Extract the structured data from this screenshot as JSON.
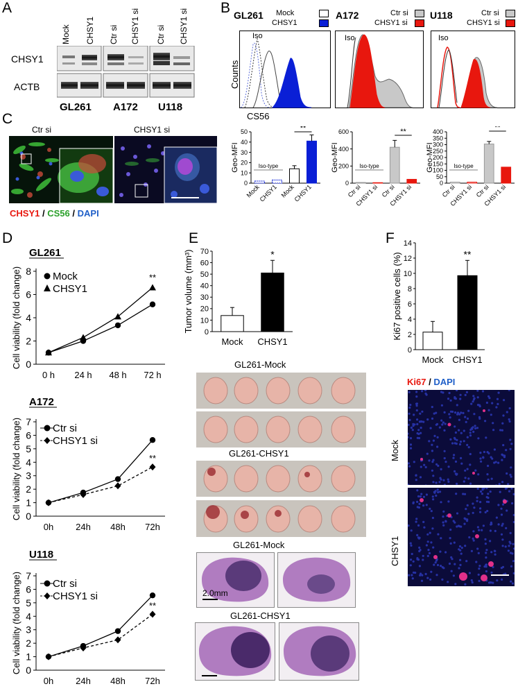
{
  "panels": {
    "A": "A",
    "B": "B",
    "C": "C",
    "D": "D",
    "E": "E",
    "F": "F"
  },
  "panelA": {
    "lanes": [
      "Mock",
      "CHSY1",
      "Ctr si",
      "CHSY1 si",
      "Ctr si",
      "CHSY1 si"
    ],
    "rows": [
      "CHSY1",
      "ACTB"
    ],
    "cell_lines": [
      "GL261",
      "A172",
      "U118"
    ]
  },
  "panelB": {
    "hist": [
      {
        "cell": "GL261",
        "legend": [
          "Mock",
          "CHSY1"
        ],
        "iso": "Iso",
        "ylabel": "Counts",
        "xlabel": "CS56"
      },
      {
        "cell": "A172",
        "legend": [
          "Ctr si",
          "CHSY1 si"
        ],
        "iso": "Iso"
      },
      {
        "cell": "U118",
        "legend": [
          "Ctr si",
          "CHSY1 si"
        ],
        "iso": "Iso"
      }
    ],
    "colors": {
      "blue": "#0a1fd6",
      "red": "#e8170e",
      "gray": "#c8c8c8"
    }
  },
  "panelC": {
    "title_left": "Ctr si",
    "title_right": "CHSY1 si",
    "stain": [
      "CHSY1",
      "/",
      "CS56",
      "/",
      "DAPI"
    ]
  },
  "panelE": {
    "label_mock": "GL261-Mock",
    "label_chsy1": "GL261-CHSY1",
    "label_mock2": "GL261-Mock",
    "label_chsy12": "GL261-CHSY1",
    "scale": "2.0mm"
  },
  "panelF": {
    "stain": [
      "Ki67",
      "/",
      "DAPI"
    ],
    "row1": "Mock",
    "row2": "CHSY1"
  },
  "chart_data": [
    {
      "id": "B-GL261-mfi",
      "type": "bar",
      "ylabel": "Geo-MFI",
      "ylim": [
        0,
        50
      ],
      "yticks": [
        0,
        10,
        20,
        30,
        40,
        50
      ],
      "categories": [
        "Mock",
        "CHSY1",
        "Mock",
        "CHSY1"
      ],
      "values": [
        2,
        3,
        14,
        41
      ],
      "errors": [
        0,
        0,
        3,
        6
      ],
      "group_note": "Iso-type",
      "sig": "**"
    },
    {
      "id": "B-A172-mfi",
      "type": "bar",
      "ylabel": "Geo-MFI",
      "ylim": [
        0,
        600
      ],
      "yticks": [
        0,
        200,
        400,
        600
      ],
      "categories": [
        "Ctr si",
        "CHSY1 si",
        "Ctr si",
        "CHSY1 si"
      ],
      "values": [
        8,
        6,
        420,
        45
      ],
      "errors": [
        0,
        0,
        80,
        0
      ],
      "group_note": "Iso-type",
      "sig": "**"
    },
    {
      "id": "B-U118-mfi",
      "type": "bar",
      "ylabel": "Geo-MFI",
      "ylim": [
        0,
        400
      ],
      "yticks": [
        0,
        50,
        100,
        150,
        200,
        250,
        300,
        350,
        400
      ],
      "categories": [
        "Ctr si",
        "CHSY1 si",
        "Ctr si",
        "CHSY1 si"
      ],
      "values": [
        8,
        8,
        305,
        125
      ],
      "errors": [
        0,
        0,
        20,
        0
      ],
      "group_note": "Iso-type",
      "sig": "**"
    },
    {
      "id": "D-GL261",
      "type": "line",
      "title": "GL261",
      "ylabel": "Cell viability (fold change)",
      "ylim": [
        0,
        8
      ],
      "yticks": [
        0,
        2,
        4,
        6,
        8
      ],
      "x": [
        "0 h",
        "24 h",
        "48 h",
        "72 h"
      ],
      "series": [
        {
          "name": "Mock",
          "values": [
            1.0,
            2.0,
            3.35,
            5.15
          ]
        },
        {
          "name": "CHSY1",
          "values": [
            1.0,
            2.3,
            4.1,
            6.6
          ]
        }
      ],
      "sig": "**"
    },
    {
      "id": "D-A172",
      "type": "line",
      "title": "A172",
      "ylabel": "Cell viability (fold change)",
      "ylim": [
        0,
        7
      ],
      "yticks": [
        0,
        1,
        2,
        3,
        4,
        5,
        6,
        7
      ],
      "x": [
        "0h",
        "24h",
        "48h",
        "72h"
      ],
      "series": [
        {
          "name": "Ctr si",
          "values": [
            1.0,
            1.75,
            2.75,
            5.65
          ]
        },
        {
          "name": "CHSY1 si",
          "values": [
            1.0,
            1.6,
            2.25,
            3.65
          ]
        }
      ],
      "sig": "**"
    },
    {
      "id": "D-U118",
      "type": "line",
      "title": "U118",
      "ylabel": "Cell viability (fold change)",
      "ylim": [
        0,
        7
      ],
      "yticks": [
        0,
        1,
        2,
        3,
        4,
        5,
        6,
        7
      ],
      "x": [
        "0h",
        "24h",
        "48h",
        "72h"
      ],
      "series": [
        {
          "name": "Ctr si",
          "values": [
            1.0,
            1.8,
            2.9,
            5.55
          ]
        },
        {
          "name": "CHSY1 si",
          "values": [
            1.0,
            1.65,
            2.25,
            4.15
          ]
        }
      ],
      "sig": "**"
    },
    {
      "id": "E-tumor",
      "type": "bar",
      "ylabel": "Tumor volume (mm³)",
      "ylim": [
        0,
        70
      ],
      "yticks": [
        0,
        10,
        20,
        30,
        40,
        50,
        60,
        70
      ],
      "categories": [
        "Mock",
        "CHSY1"
      ],
      "values": [
        14,
        51
      ],
      "errors": [
        7,
        11
      ],
      "sig": "*"
    },
    {
      "id": "F-ki67",
      "type": "bar",
      "ylabel": "Ki67 positive cells (%)",
      "ylim": [
        0,
        14
      ],
      "yticks": [
        0,
        2,
        4,
        6,
        8,
        10,
        12,
        14
      ],
      "categories": [
        "Mock",
        "CHSY1"
      ],
      "values": [
        2.3,
        9.7
      ],
      "errors": [
        1.4,
        2.0
      ],
      "sig": "**"
    }
  ]
}
